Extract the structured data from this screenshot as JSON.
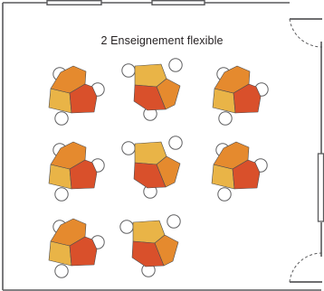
{
  "plan": {
    "title": "2 Enseignement flexible"
  },
  "colors": {
    "wall": "#59595b",
    "chair_stroke": "#606062",
    "chair_fill": "#ffffff",
    "yellow": "#e9b447",
    "orange": "#e58a2e",
    "red": "#d9502b",
    "outline": "#4d4d4f",
    "text": "#231f20"
  },
  "tables": [
    {
      "id": "t1",
      "orientation": "A"
    },
    {
      "id": "t2",
      "orientation": "B"
    },
    {
      "id": "t3",
      "orientation": "A"
    },
    {
      "id": "t4",
      "orientation": "A"
    },
    {
      "id": "t5",
      "orientation": "B"
    },
    {
      "id": "t6",
      "orientation": "A"
    },
    {
      "id": "t7",
      "orientation": "A"
    },
    {
      "id": "t8",
      "orientation": "B"
    }
  ]
}
